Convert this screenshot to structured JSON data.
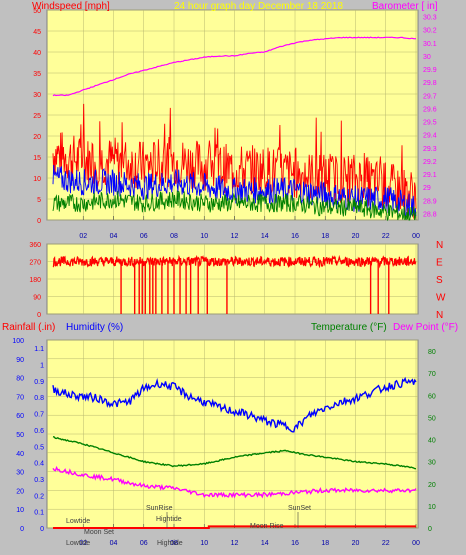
{
  "header": {
    "windspeed": "Windspeed [mph]",
    "title": "24 hour graph day   December 18 2018",
    "barometer": "Barometer [ in]"
  },
  "bottom_header": {
    "rainfall": "Rainfall (.in)",
    "humidity": "Humidity (%)",
    "temperature": "Temperature (°F)",
    "dewpoint": "Dew Point (°F)"
  },
  "colors": {
    "background": "#c0c0c0",
    "plot_bg": "#ffff99",
    "grid": "#b8b870",
    "wind": "#ff0000",
    "gust_avg": "#0000ff",
    "wind_min": "#008000",
    "barometer": "#ff00ff",
    "direction": "#ff0000",
    "humidity": "#0000ff",
    "temperature": "#008000",
    "dewpoint": "#ff00ff",
    "rain": "#ff0000"
  },
  "annotations": {
    "lowtide_1": "Lowtide",
    "moonset": "Moon Set",
    "sunrise": "SunRise",
    "hightide": "Hightide",
    "moonrise": "Moon Rise",
    "sunset": "SunSet",
    "lowtide_2": "Lowtide",
    "hightide_2": "Hightide"
  },
  "chart_data": [
    {
      "type": "line",
      "x_ticks": [
        "02",
        "04",
        "06",
        "08",
        "10",
        "12",
        "14",
        "16",
        "18",
        "20",
        "22",
        "00"
      ],
      "y_left_ticks": [
        "0",
        "5",
        "10",
        "15",
        "20",
        "25",
        "30",
        "35",
        "40",
        "45",
        "50"
      ],
      "y_left_range": [
        0,
        50
      ],
      "y_right_ticks": [
        "28.8",
        "28.9",
        "29",
        "29.1",
        "29.2",
        "29.3",
        "29.4",
        "29.5",
        "29.6",
        "29.7",
        "29.8",
        "29.9",
        "30",
        "30.1",
        "30.2",
        "30.3"
      ],
      "y_right_range": [
        28.75,
        30.35
      ],
      "series": [
        {
          "key": "wind_high",
          "hours": [
            0,
            2,
            4,
            6,
            8,
            10,
            12,
            14,
            16,
            18,
            20,
            22,
            24
          ],
          "values": [
            16,
            14,
            14,
            13,
            14,
            13,
            12,
            12,
            11,
            10,
            10,
            8,
            6
          ]
        },
        {
          "key": "wind_mid",
          "hours": [
            0,
            2,
            4,
            6,
            8,
            10,
            12,
            14,
            16,
            18,
            20,
            22,
            24
          ],
          "values": [
            10,
            9,
            9,
            8,
            9,
            8,
            7,
            7,
            7,
            6,
            5,
            5,
            3
          ]
        },
        {
          "key": "wind_low",
          "hours": [
            0,
            2,
            4,
            6,
            8,
            10,
            12,
            14,
            16,
            18,
            20,
            22,
            24
          ],
          "values": [
            4,
            4,
            5,
            4,
            5,
            4,
            4,
            4,
            4,
            3,
            3,
            2,
            1
          ]
        },
        {
          "key": "barometer",
          "hours": [
            0,
            1,
            2,
            3,
            4,
            5,
            6,
            7,
            8,
            9,
            10,
            11,
            12,
            13,
            14,
            15,
            16,
            17,
            18,
            19,
            20,
            21,
            22,
            23,
            24
          ],
          "values": [
            29.7,
            29.7,
            29.74,
            29.78,
            29.82,
            29.86,
            29.89,
            29.92,
            29.95,
            29.97,
            29.99,
            30.0,
            30.0,
            30.02,
            30.03,
            30.07,
            30.1,
            30.12,
            30.13,
            30.14,
            30.14,
            30.14,
            30.14,
            30.14,
            30.13
          ]
        }
      ]
    },
    {
      "type": "scatter",
      "x_ticks": [
        "02",
        "04",
        "06",
        "08",
        "10",
        "12",
        "14",
        "16",
        "18",
        "20",
        "22",
        "00"
      ],
      "y_left_ticks": [
        "0",
        "90",
        "180",
        "270",
        "360"
      ],
      "y_right_labels": [
        "N",
        "W",
        "S",
        "E",
        "N"
      ],
      "y_range": [
        0,
        360
      ],
      "series": [
        {
          "key": "direction",
          "typical": 270,
          "drop_hours": [
            4.5,
            5.4,
            5.7,
            5.9,
            6.1,
            6.4,
            6.6,
            6.8,
            7.2,
            7.6,
            8.0,
            8.4,
            8.8,
            9.1,
            9.6,
            10.2,
            11.5,
            21.0,
            21.5,
            22.2
          ]
        }
      ]
    },
    {
      "type": "line",
      "x_ticks": [
        "02",
        "04",
        "06",
        "08",
        "10",
        "12",
        "14",
        "16",
        "18",
        "20",
        "22",
        "00"
      ],
      "y_rain_ticks": [
        "0",
        "0.1",
        "0.2",
        "0.3",
        "0.4",
        "0.5",
        "0.6",
        "0.7",
        "0.8",
        "0.9",
        "1",
        "1.1"
      ],
      "y_humidity_ticks": [
        "0",
        "10",
        "20",
        "30",
        "40",
        "50",
        "60",
        "70",
        "80",
        "90",
        "100"
      ],
      "y_temp_ticks": [
        "0",
        "10",
        "20",
        "30",
        "40",
        "50",
        "60",
        "70",
        "80"
      ],
      "y_rain_range": [
        0,
        1.15
      ],
      "y_humidity_range": [
        0,
        100
      ],
      "y_temp_range": [
        0,
        85
      ],
      "series": [
        {
          "key": "humidity",
          "hours": [
            0,
            1,
            2,
            3,
            4,
            5,
            6,
            7,
            8,
            9,
            10,
            11,
            12,
            13,
            14,
            15,
            16,
            17,
            18,
            19,
            20,
            21,
            22,
            23,
            24
          ],
          "values": [
            74,
            71,
            70,
            69,
            66,
            67,
            74,
            77,
            75,
            70,
            67,
            64,
            62,
            60,
            57,
            55,
            53,
            60,
            64,
            67,
            69,
            72,
            75,
            77,
            78
          ]
        },
        {
          "key": "temperature",
          "hours": [
            0,
            2,
            4,
            6,
            8,
            10,
            12,
            14,
            15.5,
            16,
            18,
            20,
            22,
            24
          ],
          "values": [
            41,
            38,
            34,
            30,
            28,
            29,
            32,
            34,
            35,
            34,
            32,
            30,
            29,
            27
          ]
        },
        {
          "key": "dewpoint",
          "hours": [
            0,
            2,
            4,
            6,
            8,
            10,
            12,
            14,
            16,
            18,
            20,
            22,
            24
          ],
          "values": [
            27,
            24,
            22,
            19,
            18,
            15,
            15,
            15,
            16,
            17,
            17,
            17,
            17
          ]
        },
        {
          "key": "rain",
          "hours": [
            0,
            10.3,
            10.3,
            24
          ],
          "values": [
            0,
            0,
            0.01,
            0.01
          ]
        }
      ]
    }
  ]
}
